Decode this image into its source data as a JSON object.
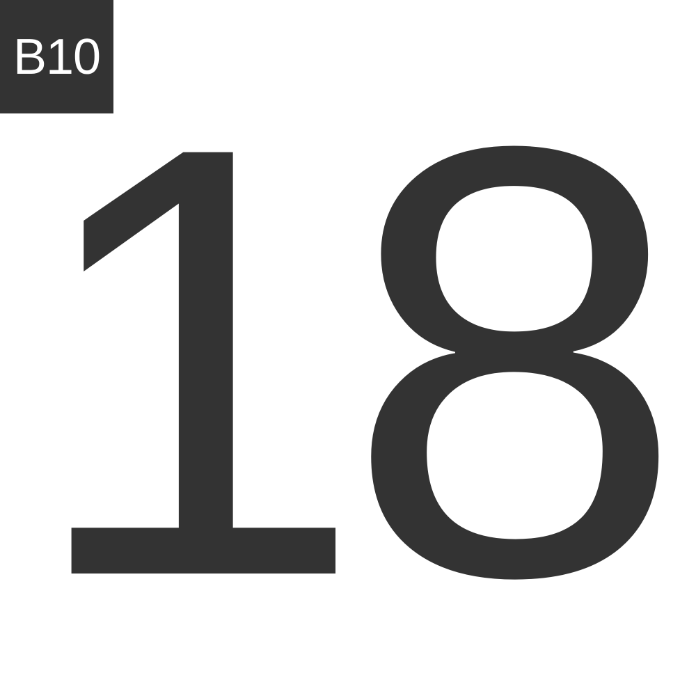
{
  "tag": {
    "label": "B10"
  },
  "main": {
    "number": "18"
  },
  "colors": {
    "ink": "#333333",
    "background": "#ffffff",
    "tag_text": "#ffffff"
  }
}
